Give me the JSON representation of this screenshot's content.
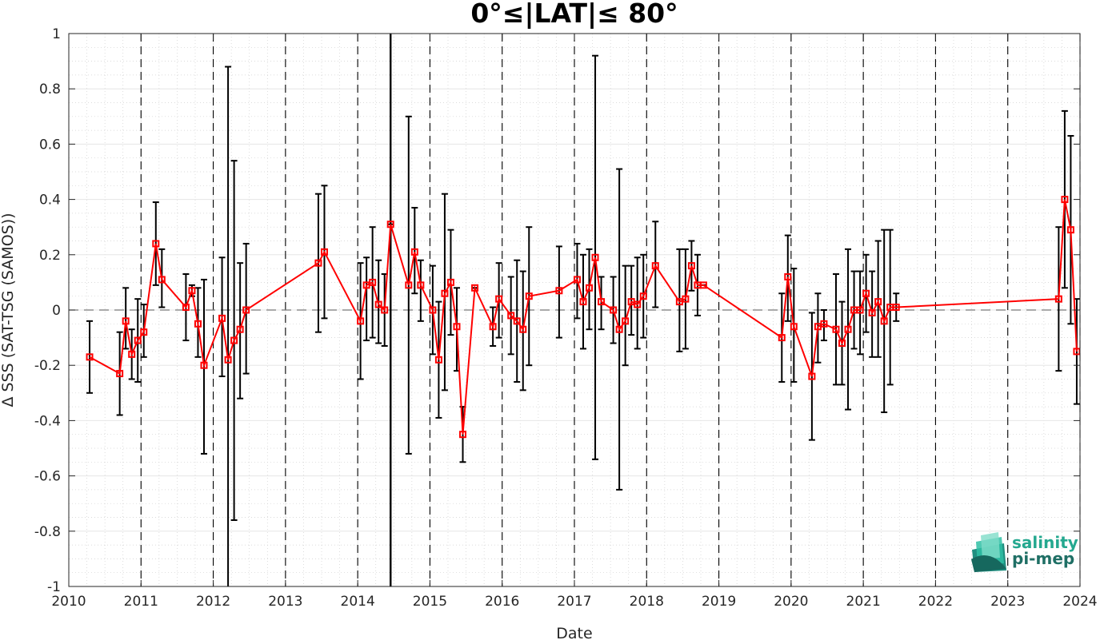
{
  "chart_data": {
    "type": "line",
    "title": "0°≤|LAT|≤ 80°",
    "xlabel": "Date",
    "ylabel": "Δ SSS (SAT-TSG (SAMOS))",
    "xlim": [
      "2010-01-01",
      "2024-01-01"
    ],
    "ylim": [
      -1,
      1
    ],
    "x_ticks": [
      "2010",
      "2011",
      "2012",
      "2013",
      "2014",
      "2015",
      "2016",
      "2017",
      "2018",
      "2019",
      "2020",
      "2021",
      "2022",
      "2023",
      "2024"
    ],
    "y_ticks": [
      "-1",
      "-0.8",
      "-0.6",
      "-0.4",
      "-0.2",
      "0",
      "0.2",
      "0.4",
      "0.6",
      "0.8",
      "1"
    ],
    "grid": "on (dotted minor grid)",
    "reference_line": {
      "y": 0,
      "style": "dashed"
    },
    "year_markers": [
      "2011-01-01",
      "2012-01-01",
      "2013-01-01",
      "2014-01-01",
      "2015-01-01",
      "2016-01-01",
      "2017-01-01",
      "2018-01-01",
      "2019-01-01",
      "2020-01-01",
      "2021-01-01",
      "2022-01-01",
      "2023-01-01",
      "2024-01-01"
    ],
    "event_marker": {
      "date": "2014-06-15",
      "style": "solid"
    },
    "colors": {
      "series": "#ff0000",
      "errorbar": "#000000",
      "grid": "#c8c8c8"
    },
    "series": [
      {
        "x": [
          "2010-04",
          "2010-09",
          "2010-10",
          "2010-11",
          "2010-12",
          "2011-01",
          "2011-03",
          "2011-04",
          "2011-08",
          "2011-09",
          "2011-10",
          "2011-11",
          "2012-02",
          "2012-03",
          "2012-04",
          "2012-05",
          "2012-06",
          "2013-06",
          "2013-07",
          "2014-01",
          "2014-02",
          "2014-03",
          "2014-04",
          "2014-05",
          "2014-06",
          "2014-09",
          "2014-10",
          "2014-11",
          "2015-01",
          "2015-02",
          "2015-03",
          "2015-04",
          "2015-05",
          "2015-06",
          "2015-08",
          "2015-11",
          "2015-12",
          "2016-02",
          "2016-03",
          "2016-04",
          "2016-05",
          "2016-10",
          "2017-01",
          "2017-02",
          "2017-03",
          "2017-04",
          "2017-05",
          "2017-07",
          "2017-08",
          "2017-09",
          "2017-10",
          "2017-11",
          "2017-12",
          "2018-02",
          "2018-06",
          "2018-07",
          "2018-08",
          "2018-09",
          "2018-10",
          "2019-11",
          "2019-12",
          "2020-01",
          "2020-04",
          "2020-05",
          "2020-06",
          "2020-08",
          "2020-09",
          "2020-10",
          "2020-11",
          "2020-12",
          "2021-01",
          "2021-02",
          "2021-03",
          "2021-04",
          "2021-05",
          "2021-06",
          "2023-09",
          "2023-10",
          "2023-11",
          "2023-12"
        ],
        "y": [
          -0.17,
          -0.23,
          -0.04,
          -0.16,
          -0.11,
          -0.08,
          0.24,
          0.11,
          0.01,
          0.07,
          -0.05,
          -0.2,
          -0.03,
          -0.18,
          -0.11,
          -0.07,
          0.0,
          0.17,
          0.21,
          -0.04,
          0.09,
          0.1,
          0.02,
          0.0,
          0.31,
          0.09,
          0.21,
          0.09,
          0.0,
          -0.18,
          0.06,
          0.1,
          -0.06,
          -0.45,
          0.08,
          -0.06,
          0.04,
          -0.02,
          -0.04,
          -0.07,
          0.05,
          0.07,
          0.11,
          0.03,
          0.08,
          0.19,
          0.03,
          0.0,
          -0.07,
          -0.04,
          0.03,
          0.02,
          0.05,
          0.16,
          0.03,
          0.04,
          0.16,
          0.09,
          0.09,
          -0.1,
          0.12,
          -0.06,
          -0.24,
          -0.06,
          -0.05,
          -0.07,
          -0.12,
          -0.07,
          0.0,
          0.0,
          0.06,
          -0.01,
          0.03,
          -0.04,
          0.01,
          0.01,
          0.04,
          0.4,
          0.29,
          -0.15
        ],
        "err_low": [
          -0.3,
          -0.38,
          -0.14,
          -0.25,
          -0.26,
          -0.17,
          0.09,
          0.01,
          -0.11,
          0.05,
          -0.17,
          -0.52,
          -0.24,
          -1.0,
          -0.76,
          -0.32,
          -0.23,
          -0.08,
          -0.03,
          -0.25,
          -0.11,
          -0.1,
          -0.12,
          -0.13,
          -1.0,
          -0.52,
          0.06,
          -0.04,
          -0.16,
          -0.39,
          -0.29,
          -0.09,
          -0.22,
          -0.55,
          0.08,
          -0.13,
          -0.1,
          -0.16,
          -0.26,
          -0.29,
          -0.2,
          -0.1,
          -0.03,
          -0.14,
          -0.07,
          -0.54,
          -0.07,
          -0.12,
          -0.65,
          -0.2,
          -0.09,
          -0.14,
          -0.1,
          0.01,
          -0.15,
          -0.14,
          0.07,
          -0.02,
          0.09,
          -0.26,
          -0.04,
          -0.26,
          -0.47,
          -0.19,
          -0.11,
          -0.27,
          -0.27,
          -0.36,
          -0.14,
          -0.16,
          -0.08,
          -0.17,
          -0.17,
          -0.37,
          -0.27,
          -0.04,
          -0.22,
          0.08,
          -0.05,
          -0.34
        ],
        "err_high": [
          -0.04,
          -0.08,
          0.08,
          -0.07,
          0.04,
          0.02,
          0.39,
          0.22,
          0.13,
          0.09,
          0.08,
          0.11,
          0.19,
          0.88,
          0.54,
          0.17,
          0.24,
          0.42,
          0.45,
          0.17,
          0.19,
          0.3,
          0.18,
          0.13,
          0.31,
          0.7,
          0.37,
          0.18,
          0.16,
          0.03,
          0.42,
          0.29,
          0.08,
          -0.35,
          0.08,
          0.01,
          0.17,
          0.12,
          0.18,
          0.14,
          0.3,
          0.23,
          0.24,
          0.2,
          0.22,
          0.92,
          0.12,
          0.12,
          0.51,
          0.16,
          0.16,
          0.19,
          0.2,
          0.32,
          0.22,
          0.22,
          0.25,
          0.2,
          0.09,
          0.06,
          0.27,
          0.15,
          -0.01,
          0.06,
          0.0,
          0.13,
          0.03,
          0.22,
          0.14,
          0.14,
          0.2,
          0.14,
          0.25,
          0.29,
          0.29,
          0.06,
          0.3,
          0.72,
          0.63,
          0.04
        ]
      }
    ]
  },
  "logo": {
    "line1": "salinity",
    "line2": "pi-mep",
    "color1": "#24a88f",
    "color2": "#1f6f65"
  }
}
